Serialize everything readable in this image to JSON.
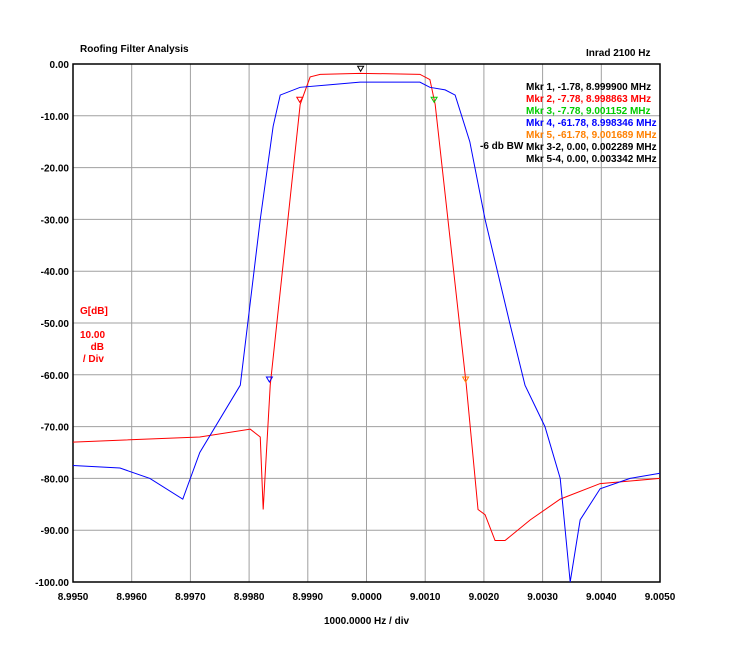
{
  "chart_data": {
    "type": "line",
    "title": "Roofing Filter Analysis",
    "subtitle": "Inrad 2100 Hz",
    "xlabel": "1000.0000 Hz / div",
    "ylabel": "G[dB]",
    "scale_label": [
      "10.00",
      "dB",
      "/ Div"
    ],
    "xlim": [
      8.995,
      9.005
    ],
    "ylim": [
      -100,
      0
    ],
    "grid": true,
    "xticks": [
      "8.9950",
      "8.9960",
      "8.9970",
      "8.9980",
      "8.9990",
      "9.0000",
      "9.0010",
      "9.0020",
      "9.0030",
      "9.0040",
      "9.0050"
    ],
    "yticks": [
      "0.00",
      "-10.00",
      "-20.00",
      "-30.00",
      "-40.00",
      "-50.00",
      "-60.00",
      "-70.00",
      "-80.00",
      "-90.00",
      "-100.00"
    ],
    "series": [
      {
        "name": "G[dB] red",
        "color": "#ff0000",
        "x": [
          8.995,
          8.99716,
          8.99802,
          8.99819,
          8.99824,
          8.99836,
          8.99887,
          8.99904,
          8.99921,
          8.99989,
          9.00091,
          9.00108,
          9.00117,
          9.0017,
          9.0019,
          9.00202,
          9.00219,
          9.00236,
          9.00279,
          9.0033,
          9.00398,
          9.005
        ],
        "y": [
          -73,
          -72,
          -70.5,
          -72,
          -86,
          -62,
          -7.8,
          -2.5,
          -2,
          -1.8,
          -2,
          -3,
          -7.8,
          -62,
          -86,
          -87,
          -92,
          -92,
          -88,
          -84,
          -81,
          -80
        ]
      },
      {
        "name": "blue",
        "color": "#0000ff",
        "x": [
          8.995,
          8.9958,
          8.99631,
          8.99687,
          8.99716,
          8.99785,
          8.99819,
          8.99841,
          8.99853,
          8.99887,
          8.99938,
          8.99989,
          9.00091,
          9.00108,
          9.00134,
          9.00151,
          9.00176,
          9.00202,
          9.00244,
          9.0027,
          9.00304,
          9.0033,
          9.00347,
          9.00364,
          9.00398,
          9.00449,
          9.005
        ],
        "y": [
          -77.5,
          -78,
          -80,
          -84,
          -75,
          -62,
          -30,
          -12,
          -6,
          -4.5,
          -4,
          -3.5,
          -3.5,
          -4.5,
          -5,
          -6,
          -15,
          -30,
          -50,
          -62,
          -70,
          -80,
          -100,
          -88,
          -82,
          -80,
          -79
        ]
      }
    ],
    "markers": [
      {
        "label": "Mkr 1, -1.78, 8.999900 MHz",
        "color": "#000000",
        "x": 8.9999,
        "y": -1.78
      },
      {
        "label": "Mkr 2, -7.78, 8.998863 MHz",
        "color": "#ff0000",
        "x": 8.998863,
        "y": -7.78
      },
      {
        "label": "Mkr 3, -7.78, 9.001152 MHz",
        "color": "#00cc00",
        "x": 9.001152,
        "y": -7.78
      },
      {
        "label": "Mkr 4, -61.78, 8.998346 MHz",
        "color": "#0000ff",
        "x": 8.998346,
        "y": -61.78
      },
      {
        "label": "Mkr 5, -61.78, 9.001689 MHz",
        "color": "#ff8000",
        "x": 9.001689,
        "y": -61.78
      },
      {
        "label": "Mkr 3-2, 0.00, 0.002289 MHz",
        "color": "#000000"
      },
      {
        "label": "Mkr 5-4, 0.00, 0.003342 MHz",
        "color": "#000000"
      }
    ],
    "bw_label": "-6 db BW"
  }
}
